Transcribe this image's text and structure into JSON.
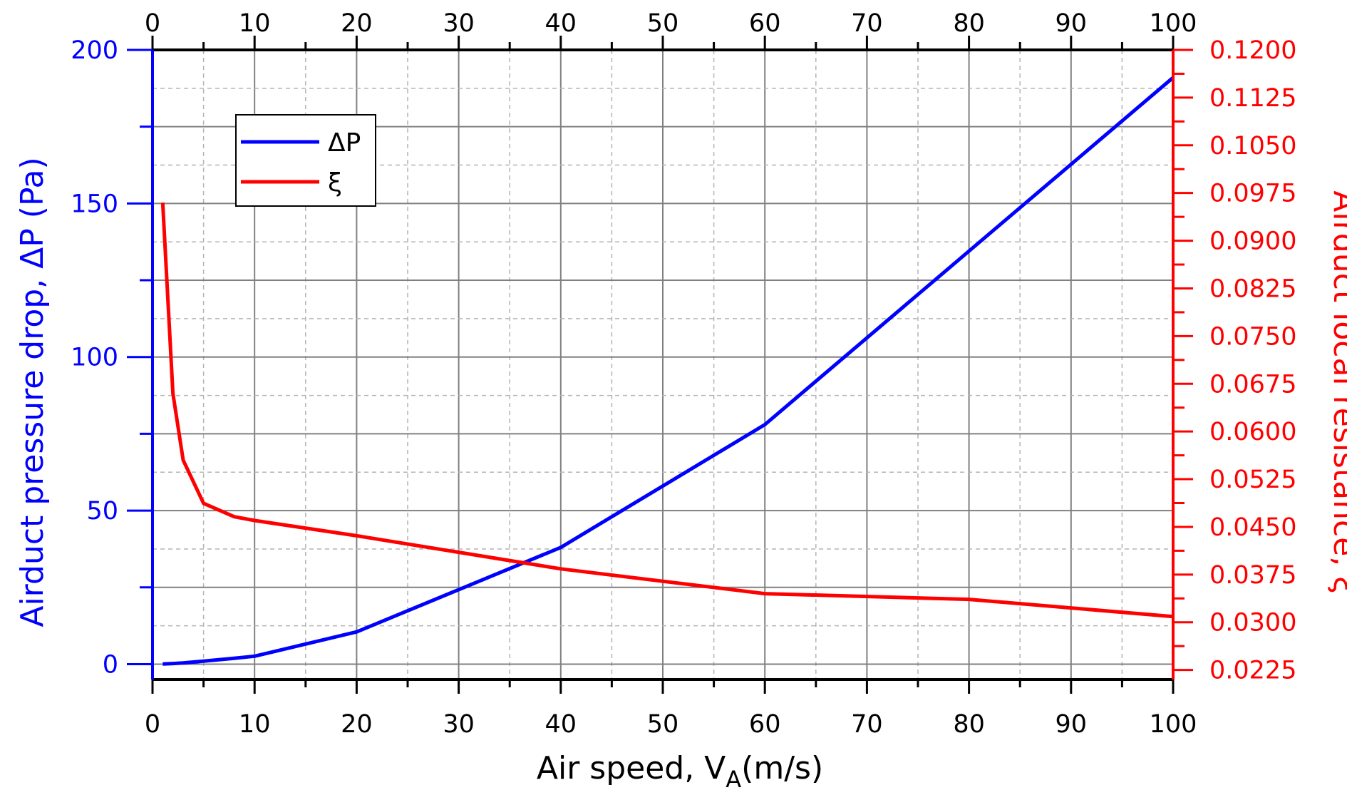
{
  "chart_data": {
    "type": "line",
    "xlabel": "Air speed, V",
    "xlabel_subscript": "A",
    "xlabel_suffix": "(m/s)",
    "ylabel_left": "Airduct pressure drop, ΔP (Pa)",
    "ylabel_right": "Airduct local resistance, ξ",
    "xlim": [
      0,
      100
    ],
    "ylim_left": [
      -5,
      200
    ],
    "ylim_right": [
      0.021,
      0.12
    ],
    "x_ticks": [
      "0",
      "10",
      "20",
      "30",
      "40",
      "50",
      "60",
      "70",
      "80",
      "90",
      "100"
    ],
    "y_left_ticks": [
      "0",
      "50",
      "100",
      "150",
      "200"
    ],
    "y_right_ticks": [
      "0.0225",
      "0.0300",
      "0.0375",
      "0.0450",
      "0.0525",
      "0.0600",
      "0.0675",
      "0.0750",
      "0.0825",
      "0.0900",
      "0.0975",
      "0.1050",
      "0.1125",
      "0.1200"
    ],
    "grid": true,
    "legend_position": "top-left",
    "series": [
      {
        "name": "ΔP",
        "axis": "left",
        "color": "#0000ff",
        "x": [
          1,
          2,
          3,
          5,
          8,
          10,
          20,
          40,
          60,
          100
        ],
        "y": [
          0.05,
          0.2,
          0.4,
          1.0,
          1.9,
          2.6,
          10.5,
          38,
          78,
          191
        ]
      },
      {
        "name": "ξ",
        "axis": "right",
        "color": "#ff0000",
        "x": [
          1,
          2,
          3,
          5,
          8,
          10,
          20,
          40,
          60,
          80,
          100
        ],
        "y": [
          0.096,
          0.066,
          0.0555,
          0.0487,
          0.0466,
          0.046,
          0.0436,
          0.0384,
          0.0345,
          0.0336,
          0.0309
        ]
      }
    ]
  },
  "colors": {
    "left_axis": "#0000ff",
    "right_axis": "#ff0000",
    "frame": "#000000",
    "grid_major": "#808080",
    "grid_minor": "#b4b4b4"
  }
}
